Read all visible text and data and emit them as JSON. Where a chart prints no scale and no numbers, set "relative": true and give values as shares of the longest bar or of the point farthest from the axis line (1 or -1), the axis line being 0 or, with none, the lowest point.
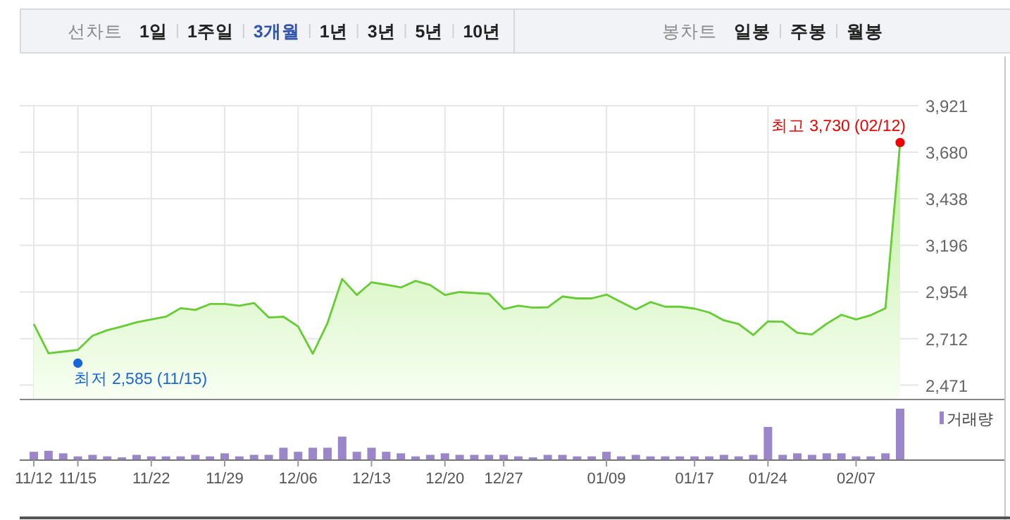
{
  "chart_data": [
    {
      "type": "other",
      "annotations": [
        "선차트",
        "1일",
        "1주일",
        "3개월",
        "1년",
        "3년",
        "5년",
        "10년",
        "봉차트",
        "일봉",
        "주봉",
        "월봉"
      ]
    },
    {
      "type": "area",
      "categories": [
        "11/12",
        null,
        null,
        "11/15",
        null,
        null,
        null,
        null,
        "11/22",
        null,
        null,
        null,
        null,
        "11/29",
        null,
        null,
        null,
        null,
        "12/06",
        null,
        null,
        null,
        null,
        "12/13",
        null,
        null,
        null,
        null,
        "12/20",
        null,
        null,
        null,
        "12/27",
        null,
        null,
        null,
        null,
        null,
        null,
        "01/09",
        null,
        null,
        null,
        null,
        null,
        "01/17",
        null,
        null,
        null,
        null,
        "01/24",
        null,
        null,
        null,
        null,
        null,
        "02/07",
        null,
        null,
        null
      ],
      "series": [
        {
          "color": "#66cc33",
          "values": [
            2788,
            2636,
            2645,
            2654,
            2727,
            2756,
            2775,
            2797,
            2812,
            2826,
            2870,
            2861,
            2892,
            2892,
            2883,
            2897,
            2822,
            2826,
            2775,
            2634,
            2793,
            3022,
            2939,
            3005,
            2992,
            2978,
            3012,
            2990,
            2939,
            2954,
            2949,
            2944,
            2866,
            2883,
            2873,
            2875,
            2931,
            2921,
            2921,
            2941,
            2902,
            2863,
            2902,
            2878,
            2878,
            2868,
            2848,
            2807,
            2788,
            2731,
            2802,
            2800,
            2742,
            2734,
            2790,
            2836,
            2812,
            2834,
            2870,
            3730
          ]
        }
      ],
      "ylim": [
        2400,
        3921
      ],
      "yticks": [
        {
          "value": 2471,
          "label": "2,471"
        },
        {
          "value": 2712,
          "label": "2,712"
        },
        {
          "value": 2954,
          "label": "2,954"
        },
        {
          "value": 3196,
          "label": "3,196"
        },
        {
          "value": 3438,
          "label": "3,438"
        },
        {
          "value": 3680,
          "label": "3,680"
        },
        {
          "value": 3921,
          "label": "3,921"
        }
      ],
      "grid": true,
      "tick_labels": "y",
      "marker": "none",
      "annotations": [
        "최고 3,730 (02/12)",
        {
          "text": "최저 2,585 (11/15)",
          "x": "11/15",
          "y": 2585
        }
      ]
    },
    {
      "type": "bar",
      "relative": true,
      "categories": [
        "11/12",
        null,
        null,
        "11/15",
        null,
        null,
        null,
        null,
        "11/22",
        null,
        null,
        null,
        null,
        "11/29",
        null,
        null,
        null,
        null,
        "12/06",
        null,
        null,
        null,
        null,
        "12/13",
        null,
        null,
        null,
        null,
        "12/20",
        null,
        null,
        null,
        "12/27",
        null,
        null,
        null,
        null,
        null,
        null,
        "01/09",
        null,
        null,
        null,
        null,
        null,
        "01/17",
        null,
        null,
        null,
        null,
        "01/24",
        null,
        null,
        null,
        null,
        null,
        "02/07",
        null,
        null,
        null
      ],
      "series": [
        {
          "name": "거래량",
          "color": "#9b86c9",
          "values": [
            0.15,
            0.17,
            0.12,
            0.06,
            0.09,
            0.06,
            0.04,
            0.09,
            0.06,
            0.06,
            0.06,
            0.09,
            0.06,
            0.12,
            0.06,
            0.09,
            0.09,
            0.23,
            0.15,
            0.23,
            0.23,
            0.45,
            0.15,
            0.23,
            0.15,
            0.12,
            0.06,
            0.09,
            0.12,
            0.09,
            0.09,
            0.09,
            0.09,
            0.06,
            0.04,
            0.09,
            0.09,
            0.06,
            0.06,
            0.15,
            0.06,
            0.09,
            0.06,
            0.06,
            0.06,
            0.06,
            0.06,
            0.09,
            0.06,
            0.09,
            0.64,
            0.09,
            0.12,
            0.09,
            0.12,
            0.12,
            0.06,
            0.06,
            0.12,
            1
          ]
        }
      ],
      "tick_labels": "x",
      "legend": "top right"
    }
  ]
}
